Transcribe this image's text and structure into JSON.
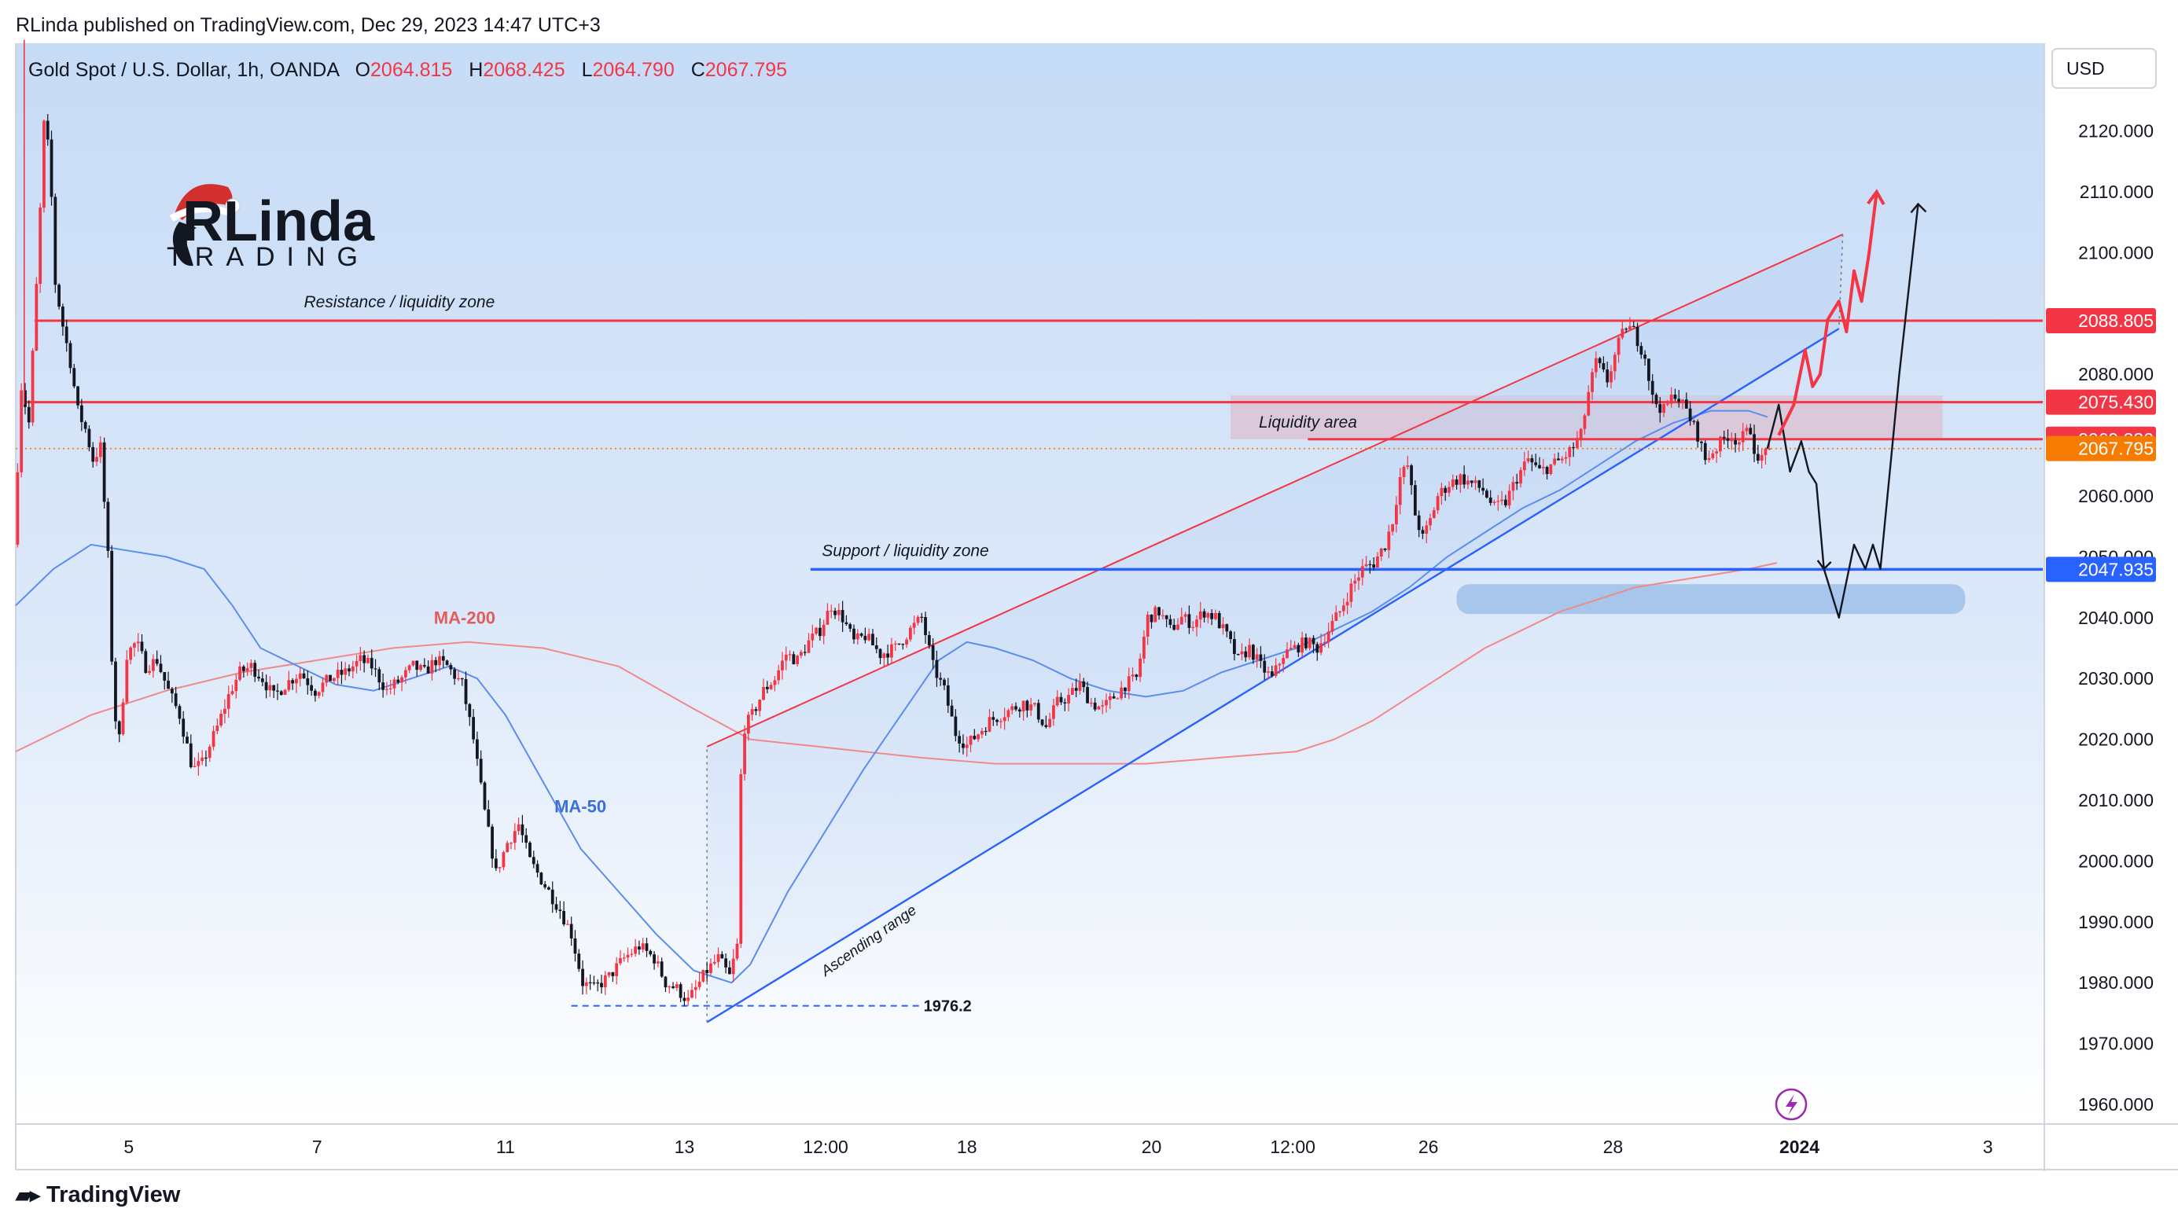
{
  "publisher_line": "RLinda published on TradingView.com, Dec 29, 2023 14:47 UTC+3",
  "footer_brand": "TradingView",
  "colors": {
    "up": "#f23645",
    "down": "#131722",
    "ma50": "#5b8def",
    "ma200": "#f08a8a",
    "resistance": "#f23645",
    "support": "#2962ff",
    "current": "#f57c00",
    "pane_bg_top": "#c9ddf7",
    "pane_bg_bottom": "#ffffff"
  },
  "chart_data": {
    "type": "candlestick",
    "symbol_line": "Gold Spot / U.S. Dollar, 1h, OANDA",
    "ohlc": {
      "o_label": "O",
      "o": "2064.815",
      "h_label": "H",
      "h": "2068.425",
      "l_label": "L",
      "l": "2064.790",
      "c_label": "C",
      "c": "2067.795"
    },
    "currency": "USD",
    "ylim": [
      1955,
      2137
    ],
    "xlim": [
      0,
      1085
    ],
    "y_ticks": [
      "2120.000",
      "2110.000",
      "2100.000",
      "2080.000",
      "2060.000",
      "2050.000",
      "2040.000",
      "2030.000",
      "2020.000",
      "2010.000",
      "2000.000",
      "1990.000",
      "1980.000",
      "1970.000",
      "1960.000"
    ],
    "x_ticks": [
      {
        "label": "5",
        "x": 60
      },
      {
        "label": "7",
        "x": 160
      },
      {
        "label": "11",
        "x": 260
      },
      {
        "label": "13",
        "x": 355
      },
      {
        "label": "12:00",
        "x": 430
      },
      {
        "label": "18",
        "x": 505
      },
      {
        "label": "20",
        "x": 603
      },
      {
        "label": "12:00",
        "x": 678
      },
      {
        "label": "26",
        "x": 750
      },
      {
        "label": "28",
        "x": 848
      },
      {
        "label": "2024",
        "x": 947
      },
      {
        "label": "3",
        "x": 1047
      }
    ],
    "price_tags": [
      {
        "label": "2088.805",
        "color": "#f23645"
      },
      {
        "label": "2075.430",
        "color": "#f23645"
      },
      {
        "label": "2069.330",
        "color": "#f23645"
      },
      {
        "label": "2067.795",
        "color": "#f57c00"
      },
      {
        "label": "2047.935",
        "color": "#2962ff"
      }
    ],
    "levels": {
      "resistance": 2088.805,
      "liquidity_top": 2075.43,
      "liquidity_bottom": 2069.33,
      "current": 2067.795,
      "support": 2047.935,
      "low": 1976.2
    },
    "anchors": [
      [
        0,
        2052
      ],
      [
        4,
        2078
      ],
      [
        8,
        2072
      ],
      [
        13,
        2100
      ],
      [
        16,
        2121
      ],
      [
        19,
        2116
      ],
      [
        22,
        2095
      ],
      [
        26,
        2088
      ],
      [
        30,
        2082
      ],
      [
        34,
        2074
      ],
      [
        38,
        2071
      ],
      [
        42,
        2066
      ],
      [
        46,
        2068
      ],
      [
        50,
        2050
      ],
      [
        53,
        2025
      ],
      [
        56,
        2020
      ],
      [
        60,
        2034
      ],
      [
        65,
        2036
      ],
      [
        70,
        2032
      ],
      [
        76,
        2033
      ],
      [
        82,
        2028
      ],
      [
        88,
        2024
      ],
      [
        95,
        2015
      ],
      [
        100,
        2016
      ],
      [
        108,
        2022
      ],
      [
        115,
        2028
      ],
      [
        120,
        2031
      ],
      [
        126,
        2032
      ],
      [
        132,
        2030
      ],
      [
        138,
        2027
      ],
      [
        144,
        2029
      ],
      [
        152,
        2031
      ],
      [
        160,
        2028
      ],
      [
        168,
        2030
      ],
      [
        176,
        2031
      ],
      [
        184,
        2033
      ],
      [
        190,
        2032
      ],
      [
        198,
        2028
      ],
      [
        206,
        2030
      ],
      [
        212,
        2032
      ],
      [
        218,
        2031
      ],
      [
        224,
        2033
      ],
      [
        230,
        2032
      ],
      [
        238,
        2029
      ],
      [
        244,
        2020
      ],
      [
        250,
        2008
      ],
      [
        256,
        1998
      ],
      [
        262,
        2003
      ],
      [
        268,
        2006
      ],
      [
        274,
        2000
      ],
      [
        282,
        1996
      ],
      [
        290,
        1992
      ],
      [
        296,
        1988
      ],
      [
        302,
        1980
      ],
      [
        308,
        1979
      ],
      [
        316,
        1981
      ],
      [
        324,
        1984
      ],
      [
        332,
        1986
      ],
      [
        340,
        1984
      ],
      [
        346,
        1980
      ],
      [
        352,
        1979
      ],
      [
        358,
        1977
      ],
      [
        362,
        1979
      ],
      [
        368,
        1982
      ],
      [
        374,
        1984
      ],
      [
        380,
        1981
      ],
      [
        384,
        1986
      ],
      [
        386,
        2014
      ],
      [
        388,
        2022
      ],
      [
        392,
        2024
      ],
      [
        398,
        2028
      ],
      [
        404,
        2030
      ],
      [
        410,
        2034
      ],
      [
        416,
        2033
      ],
      [
        422,
        2036
      ],
      [
        428,
        2038
      ],
      [
        434,
        2042
      ],
      [
        440,
        2040
      ],
      [
        446,
        2036
      ],
      [
        452,
        2037
      ],
      [
        460,
        2034
      ],
      [
        468,
        2035
      ],
      [
        476,
        2038
      ],
      [
        482,
        2040
      ],
      [
        488,
        2032
      ],
      [
        494,
        2028
      ],
      [
        500,
        2021
      ],
      [
        506,
        2019
      ],
      [
        512,
        2021
      ],
      [
        518,
        2023
      ],
      [
        524,
        2024
      ],
      [
        530,
        2025
      ],
      [
        536,
        2026
      ],
      [
        542,
        2025
      ],
      [
        548,
        2022
      ],
      [
        554,
        2026
      ],
      [
        560,
        2027
      ],
      [
        566,
        2029
      ],
      [
        572,
        2026
      ],
      [
        578,
        2025
      ],
      [
        584,
        2027
      ],
      [
        590,
        2029
      ],
      [
        596,
        2030
      ],
      [
        602,
        2040
      ],
      [
        608,
        2041
      ],
      [
        614,
        2038
      ],
      [
        620,
        2040
      ],
      [
        626,
        2039
      ],
      [
        632,
        2041
      ],
      [
        638,
        2040
      ],
      [
        644,
        2037
      ],
      [
        650,
        2033
      ],
      [
        656,
        2035
      ],
      [
        662,
        2032
      ],
      [
        668,
        2030
      ],
      [
        674,
        2034
      ],
      [
        680,
        2035
      ],
      [
        686,
        2036
      ],
      [
        692,
        2035
      ],
      [
        698,
        2038
      ],
      [
        704,
        2041
      ],
      [
        710,
        2045
      ],
      [
        716,
        2048
      ],
      [
        722,
        2049
      ],
      [
        728,
        2052
      ],
      [
        732,
        2056
      ],
      [
        736,
        2063
      ],
      [
        740,
        2065
      ],
      [
        744,
        2057
      ],
      [
        748,
        2053
      ],
      [
        752,
        2056
      ],
      [
        756,
        2060
      ],
      [
        762,
        2062
      ],
      [
        768,
        2063
      ],
      [
        774,
        2062
      ],
      [
        780,
        2061
      ],
      [
        786,
        2058
      ],
      [
        792,
        2059
      ],
      [
        798,
        2063
      ],
      [
        804,
        2066
      ],
      [
        810,
        2064
      ],
      [
        816,
        2065
      ],
      [
        822,
        2066
      ],
      [
        828,
        2068
      ],
      [
        832,
        2070
      ],
      [
        836,
        2077
      ],
      [
        840,
        2082
      ],
      [
        846,
        2079
      ],
      [
        852,
        2085
      ],
      [
        856,
        2088
      ],
      [
        860,
        2087
      ],
      [
        866,
        2083
      ],
      [
        870,
        2076
      ],
      [
        876,
        2074
      ],
      [
        882,
        2077
      ],
      [
        888,
        2074
      ],
      [
        894,
        2070
      ],
      [
        898,
        2066
      ],
      [
        904,
        2068
      ],
      [
        910,
        2070
      ],
      [
        916,
        2069
      ],
      [
        922,
        2071
      ],
      [
        926,
        2065
      ],
      [
        930,
        2067.795
      ]
    ],
    "ma50": [
      [
        0,
        2042
      ],
      [
        20,
        2048
      ],
      [
        40,
        2052
      ],
      [
        60,
        2051
      ],
      [
        80,
        2050
      ],
      [
        100,
        2048
      ],
      [
        115,
        2042
      ],
      [
        130,
        2035
      ],
      [
        150,
        2032
      ],
      [
        170,
        2029
      ],
      [
        190,
        2028
      ],
      [
        210,
        2030
      ],
      [
        230,
        2032
      ],
      [
        245,
        2030
      ],
      [
        260,
        2024
      ],
      [
        280,
        2013
      ],
      [
        300,
        2002
      ],
      [
        320,
        1995
      ],
      [
        340,
        1988
      ],
      [
        360,
        1982
      ],
      [
        380,
        1980
      ],
      [
        390,
        1983
      ],
      [
        410,
        1995
      ],
      [
        430,
        2005
      ],
      [
        450,
        2015
      ],
      [
        470,
        2024
      ],
      [
        490,
        2033
      ],
      [
        505,
        2036
      ],
      [
        520,
        2035
      ],
      [
        540,
        2033
      ],
      [
        560,
        2030
      ],
      [
        580,
        2028
      ],
      [
        600,
        2027
      ],
      [
        620,
        2028
      ],
      [
        640,
        2031
      ],
      [
        660,
        2033
      ],
      [
        680,
        2035
      ],
      [
        700,
        2038
      ],
      [
        720,
        2041
      ],
      [
        740,
        2045
      ],
      [
        760,
        2050
      ],
      [
        780,
        2054
      ],
      [
        800,
        2058
      ],
      [
        820,
        2061
      ],
      [
        840,
        2065
      ],
      [
        860,
        2069
      ],
      [
        880,
        2072
      ],
      [
        900,
        2074
      ],
      [
        920,
        2074
      ],
      [
        930,
        2073
      ]
    ],
    "ma200": [
      [
        0,
        2018
      ],
      [
        40,
        2024
      ],
      [
        80,
        2028
      ],
      [
        120,
        2031
      ],
      [
        160,
        2033
      ],
      [
        200,
        2035
      ],
      [
        240,
        2036
      ],
      [
        280,
        2035
      ],
      [
        320,
        2032
      ],
      [
        360,
        2025
      ],
      [
        390,
        2020
      ],
      [
        420,
        2019
      ],
      [
        450,
        2018
      ],
      [
        480,
        2017
      ],
      [
        520,
        2016
      ],
      [
        560,
        2016
      ],
      [
        600,
        2016
      ],
      [
        640,
        2017
      ],
      [
        680,
        2018
      ],
      [
        700,
        2020
      ],
      [
        720,
        2023
      ],
      [
        740,
        2027
      ],
      [
        760,
        2031
      ],
      [
        780,
        2035
      ],
      [
        800,
        2038
      ],
      [
        820,
        2041
      ],
      [
        840,
        2043
      ],
      [
        860,
        2045
      ],
      [
        880,
        2046
      ],
      [
        900,
        2047
      ],
      [
        920,
        2048
      ],
      [
        935,
        2049
      ]
    ],
    "channel": {
      "lower": [
        [
          367,
          1973.5
        ],
        [
          968,
          2087.5
        ]
      ],
      "upper": [
        [
          367,
          2018.8
        ],
        [
          970,
          2103
        ]
      ]
    },
    "scenario_black": [
      [
        930,
        2067.795
      ],
      [
        936,
        2075
      ],
      [
        942,
        2064
      ],
      [
        948,
        2069
      ],
      [
        952,
        2064
      ],
      [
        956,
        2062
      ],
      [
        960,
        2048
      ],
      [
        968,
        2040
      ],
      [
        976,
        2052
      ],
      [
        982,
        2048
      ],
      [
        986,
        2052
      ],
      [
        990,
        2048
      ],
      [
        1000,
        2080
      ],
      [
        1010,
        2108
      ]
    ],
    "scenario_red": [
      [
        936,
        2070
      ],
      [
        944,
        2075
      ],
      [
        950,
        2084
      ],
      [
        954,
        2078
      ],
      [
        958,
        2080
      ],
      [
        962,
        2089
      ],
      [
        968,
        2092
      ],
      [
        972,
        2087
      ],
      [
        976,
        2097
      ],
      [
        980,
        2092
      ],
      [
        984,
        2100
      ],
      [
        988,
        2110
      ]
    ],
    "annotations": {
      "resistance_label": "Resistance / liquidity zone",
      "liquidity_label": "Liquidity area",
      "support_label": "Support / liquidity zone",
      "ma200_label": "MA-200",
      "ma50_label": "MA-50",
      "channel_label": "Ascending range",
      "low_label": "1976.2"
    },
    "watermark": {
      "brand_top": "RLinda",
      "brand_bottom": "TRADING"
    }
  }
}
